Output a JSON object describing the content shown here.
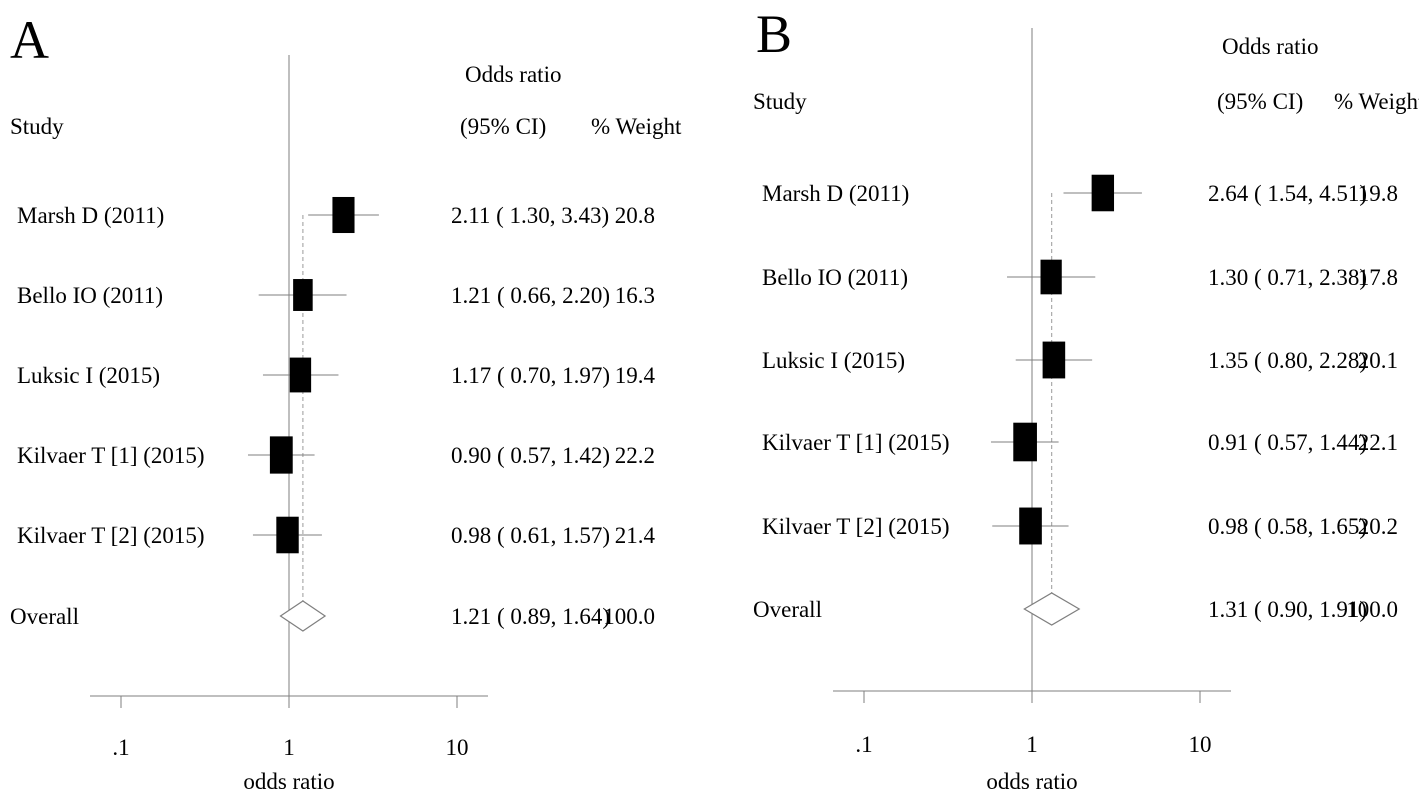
{
  "chart_data": [
    {
      "type": "forest",
      "panel_label": "A",
      "headers": {
        "study": "Study",
        "or_line1": "Odds ratio",
        "or_line2": "(95% CI)",
        "weight": "% Weight"
      },
      "studies": [
        {
          "name": "Marsh D (2011)",
          "or": 2.11,
          "lo": 1.3,
          "hi": 3.43,
          "ci_text": "2.11 ( 1.30, 3.43)",
          "weight": 20.8,
          "weight_text": "20.8"
        },
        {
          "name": "Bello IO (2011)",
          "or": 1.21,
          "lo": 0.66,
          "hi": 2.2,
          "ci_text": "1.21 ( 0.66, 2.20)",
          "weight": 16.3,
          "weight_text": "16.3"
        },
        {
          "name": "Luksic I (2015)",
          "or": 1.17,
          "lo": 0.7,
          "hi": 1.97,
          "ci_text": "1.17 ( 0.70, 1.97)",
          "weight": 19.4,
          "weight_text": "19.4"
        },
        {
          "name": "Kilvaer T [1] (2015)",
          "or": 0.9,
          "lo": 0.57,
          "hi": 1.42,
          "ci_text": "0.90 ( 0.57, 1.42)",
          "weight": 22.2,
          "weight_text": "22.2"
        },
        {
          "name": "Kilvaer T [2] (2015)",
          "or": 0.98,
          "lo": 0.61,
          "hi": 1.57,
          "ci_text": "0.98 ( 0.61, 1.57)",
          "weight": 21.4,
          "weight_text": "21.4"
        }
      ],
      "overall": {
        "name": "Overall",
        "or": 1.21,
        "lo": 0.89,
        "hi": 1.64,
        "ci_text": "1.21 ( 0.89, 1.64)",
        "weight_text": "100.0"
      },
      "x_axis": {
        "scale": "log",
        "ticks": [
          ".1",
          "1",
          "10"
        ],
        "tick_values": [
          0.1,
          1,
          10
        ],
        "label": "odds ratio",
        "range": [
          0.0785,
          15.8
        ]
      },
      "null_line": 1,
      "colors": {
        "box": "#000000",
        "ci": "#7f7f7f",
        "diamond": "#7f7f7f",
        "axis": "#7f7f7f",
        "dashed": "#9a9a9a"
      }
    },
    {
      "type": "forest",
      "panel_label": "B",
      "headers": {
        "study": "Study",
        "or_line1": "Odds ratio",
        "or_line2": "(95% CI)",
        "weight": "% Weight"
      },
      "studies": [
        {
          "name": "Marsh D (2011)",
          "or": 2.64,
          "lo": 1.54,
          "hi": 4.51,
          "ci_text": "2.64 ( 1.54, 4.51)",
          "weight": 19.8,
          "weight_text": "19.8"
        },
        {
          "name": "Bello IO (2011)",
          "or": 1.3,
          "lo": 0.71,
          "hi": 2.38,
          "ci_text": "1.30 ( 0.71, 2.38)",
          "weight": 17.8,
          "weight_text": "17.8"
        },
        {
          "name": "Luksic I (2015)",
          "or": 1.35,
          "lo": 0.8,
          "hi": 2.28,
          "ci_text": "1.35 ( 0.80, 2.28)",
          "weight": 20.1,
          "weight_text": "20.1"
        },
        {
          "name": "Kilvaer T [1] (2015)",
          "or": 0.91,
          "lo": 0.57,
          "hi": 1.44,
          "ci_text": "0.91 ( 0.57, 1.44)",
          "weight": 22.1,
          "weight_text": "22.1"
        },
        {
          "name": "Kilvaer T [2] (2015)",
          "or": 0.98,
          "lo": 0.58,
          "hi": 1.65,
          "ci_text": "0.98 ( 0.58, 1.65)",
          "weight": 20.2,
          "weight_text": "20.2"
        }
      ],
      "overall": {
        "name": "Overall",
        "or": 1.31,
        "lo": 0.9,
        "hi": 1.91,
        "ci_text": "1.31 ( 0.90, 1.91)",
        "weight_text": "100.0"
      },
      "x_axis": {
        "scale": "log",
        "ticks": [
          ".1",
          "1",
          "10"
        ],
        "tick_values": [
          0.1,
          1,
          10
        ],
        "label": "odds ratio",
        "range": [
          0.0785,
          15.8
        ]
      },
      "null_line": 1,
      "colors": {
        "box": "#000000",
        "ci": "#7f7f7f",
        "diamond": "#7f7f7f",
        "axis": "#7f7f7f",
        "dashed": "#9a9a9a"
      }
    }
  ]
}
